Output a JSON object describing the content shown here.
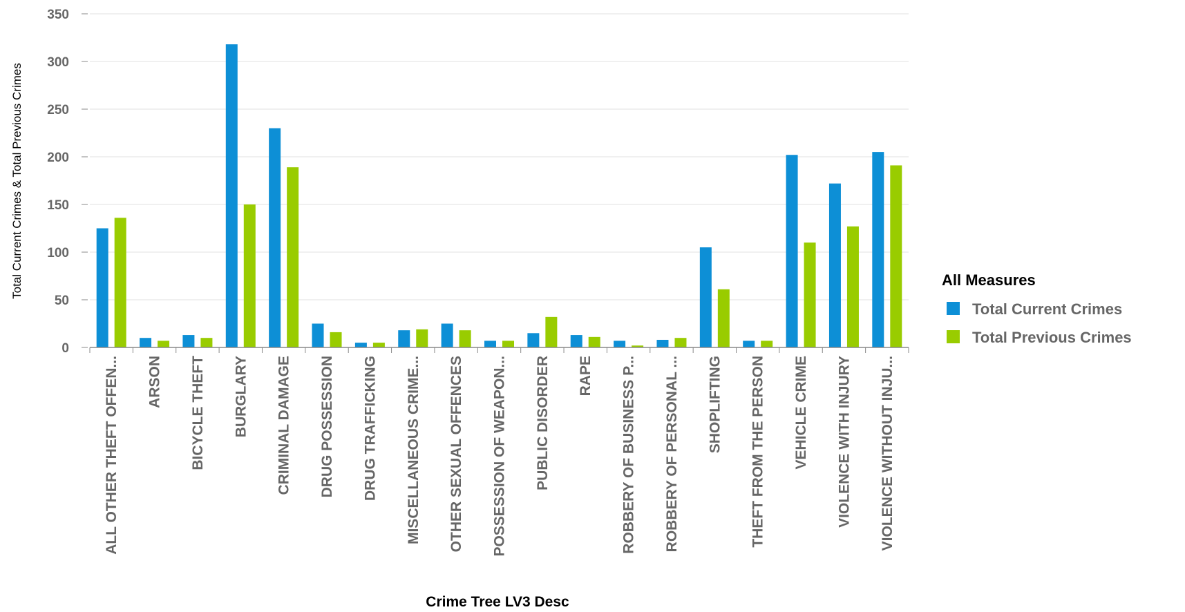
{
  "chart_data": {
    "type": "bar",
    "title": "",
    "xlabel": "Crime Tree LV3 Desc",
    "ylabel": "Total Current Crimes & Total Previous Crimes",
    "ylim": [
      0,
      350
    ],
    "yticks": [
      0,
      50,
      100,
      150,
      200,
      250,
      300,
      350
    ],
    "grid": true,
    "legend": {
      "title": "All Measures",
      "placement": "right"
    },
    "categories": [
      "ALL OTHER THEFT OFFEN...",
      "ARSON",
      "BICYCLE THEFT",
      "BURGLARY",
      "CRIMINAL DAMAGE",
      "DRUG POSSESSION",
      "DRUG TRAFFICKING",
      "MISCELLANEOUS CRIME...",
      "OTHER SEXUAL OFFENCES",
      "POSSESSION OF WEAPON...",
      "PUBLIC DISORDER",
      "RAPE",
      "ROBBERY OF BUSINESS P...",
      "ROBBERY OF PERSONAL ...",
      "SHOPLIFTING",
      "THEFT FROM THE PERSON",
      "VEHICLE CRIME",
      "VIOLENCE WITH INJURY",
      "VIOLENCE WITHOUT INJU..."
    ],
    "series": [
      {
        "name": "Total Current Crimes",
        "color": "#0d8fd6",
        "values": [
          125,
          10,
          13,
          318,
          230,
          25,
          5,
          18,
          25,
          7,
          15,
          13,
          7,
          8,
          105,
          7,
          202,
          172,
          205
        ]
      },
      {
        "name": "Total Previous Crimes",
        "color": "#99cc00",
        "values": [
          136,
          7,
          10,
          150,
          189,
          16,
          5,
          19,
          18,
          7,
          32,
          11,
          2,
          10,
          61,
          7,
          110,
          127,
          191
        ]
      }
    ]
  }
}
